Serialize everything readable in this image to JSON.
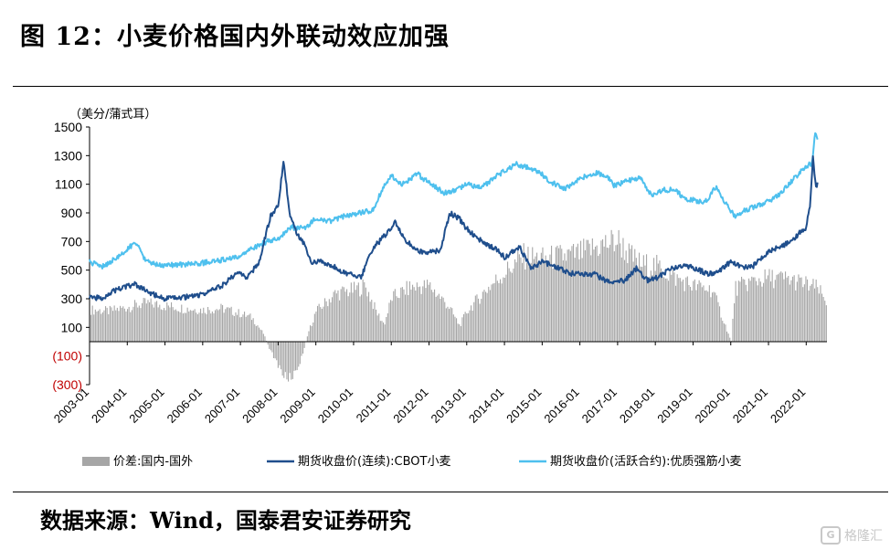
{
  "header": {
    "title": "图 12：小麦价格国内外联动效应加强"
  },
  "footer": {
    "source": "数据来源：Wind，国泰君安证券研究"
  },
  "watermark": {
    "text": "格隆汇",
    "logo": "G"
  },
  "colors": {
    "spread": "#a6a6a6",
    "cbot": "#1f4e8c",
    "domestic": "#4ec0ee",
    "negative_tick": "#c00000"
  },
  "chart_data": {
    "type": "line",
    "unit_label": "（美分/蒲式耳）",
    "ylim": [
      -300,
      1500
    ],
    "y_ticks": [
      {
        "value": 1500,
        "label": "1500",
        "negative": false
      },
      {
        "value": 1300,
        "label": "1300",
        "negative": false
      },
      {
        "value": 1100,
        "label": "1100",
        "negative": false
      },
      {
        "value": 900,
        "label": "900",
        "negative": false
      },
      {
        "value": 700,
        "label": "700",
        "negative": false
      },
      {
        "value": 500,
        "label": "500",
        "negative": false
      },
      {
        "value": 300,
        "label": "300",
        "negative": false
      },
      {
        "value": 100,
        "label": "100",
        "negative": false
      },
      {
        "value": -100,
        "label": "(100)",
        "negative": true
      },
      {
        "value": -300,
        "label": "(300)",
        "negative": true
      }
    ],
    "x_ticks": [
      "2003-01",
      "2004-01",
      "2005-01",
      "2006-01",
      "2007-01",
      "2008-01",
      "2009-01",
      "2010-01",
      "2011-01",
      "2012-01",
      "2013-01",
      "2014-01",
      "2015-01",
      "2016-01",
      "2017-01",
      "2018-01",
      "2019-01",
      "2020-01",
      "2021-01",
      "2022-01"
    ],
    "x_start": 2003.0,
    "x_end": 2022.55,
    "grid": false,
    "legend_position": "bottom",
    "series": [
      {
        "name": "价差:国内-国外",
        "kind": "bar",
        "points": [
          [
            2003.0,
            240
          ],
          [
            2003.5,
            230
          ],
          [
            2004.0,
            260
          ],
          [
            2004.5,
            290
          ],
          [
            2005.0,
            270
          ],
          [
            2005.5,
            250
          ],
          [
            2006.0,
            240
          ],
          [
            2006.5,
            250
          ],
          [
            2007.0,
            210
          ],
          [
            2007.3,
            180
          ],
          [
            2007.6,
            60
          ],
          [
            2007.8,
            -80
          ],
          [
            2008.0,
            -180
          ],
          [
            2008.2,
            -280
          ],
          [
            2008.4,
            -250
          ],
          [
            2008.6,
            -130
          ],
          [
            2008.8,
            80
          ],
          [
            2009.0,
            230
          ],
          [
            2009.5,
            360
          ],
          [
            2010.0,
            390
          ],
          [
            2010.3,
            420
          ],
          [
            2010.6,
            220
          ],
          [
            2010.8,
            130
          ],
          [
            2011.0,
            330
          ],
          [
            2011.5,
            410
          ],
          [
            2012.0,
            420
          ],
          [
            2012.5,
            270
          ],
          [
            2012.8,
            120
          ],
          [
            2013.0,
            230
          ],
          [
            2013.5,
            390
          ],
          [
            2014.0,
            520
          ],
          [
            2014.5,
            640
          ],
          [
            2015.0,
            620
          ],
          [
            2015.5,
            640
          ],
          [
            2016.0,
            660
          ],
          [
            2016.5,
            720
          ],
          [
            2017.0,
            760
          ],
          [
            2017.3,
            650
          ],
          [
            2017.6,
            580
          ],
          [
            2018.0,
            570
          ],
          [
            2018.5,
            480
          ],
          [
            2019.0,
            420
          ],
          [
            2019.5,
            390
          ],
          [
            2020.0,
            0
          ],
          [
            2020.1,
            400
          ],
          [
            2020.5,
            450
          ],
          [
            2021.0,
            480
          ],
          [
            2021.5,
            470
          ],
          [
            2022.0,
            430
          ],
          [
            2022.3,
            400
          ],
          [
            2022.5,
            300
          ]
        ]
      },
      {
        "name": "期货收盘价(连续):CBOT小麦",
        "kind": "line",
        "points": [
          [
            2003.0,
            320
          ],
          [
            2003.3,
            300
          ],
          [
            2003.6,
            350
          ],
          [
            2003.9,
            380
          ],
          [
            2004.2,
            400
          ],
          [
            2004.6,
            340
          ],
          [
            2005.0,
            300
          ],
          [
            2005.5,
            310
          ],
          [
            2006.0,
            330
          ],
          [
            2006.5,
            390
          ],
          [
            2006.9,
            480
          ],
          [
            2007.2,
            450
          ],
          [
            2007.5,
            560
          ],
          [
            2007.8,
            880
          ],
          [
            2008.0,
            950
          ],
          [
            2008.15,
            1270
          ],
          [
            2008.3,
            900
          ],
          [
            2008.5,
            760
          ],
          [
            2008.7,
            680
          ],
          [
            2008.9,
            550
          ],
          [
            2009.1,
            560
          ],
          [
            2009.5,
            520
          ],
          [
            2009.8,
            480
          ],
          [
            2010.2,
            450
          ],
          [
            2010.5,
            650
          ],
          [
            2010.9,
            760
          ],
          [
            2011.1,
            830
          ],
          [
            2011.4,
            700
          ],
          [
            2011.7,
            640
          ],
          [
            2011.9,
            620
          ],
          [
            2012.3,
            640
          ],
          [
            2012.55,
            900
          ],
          [
            2012.8,
            860
          ],
          [
            2013.0,
            790
          ],
          [
            2013.4,
            700
          ],
          [
            2013.8,
            640
          ],
          [
            2014.0,
            590
          ],
          [
            2014.4,
            660
          ],
          [
            2014.7,
            510
          ],
          [
            2015.0,
            560
          ],
          [
            2015.4,
            520
          ],
          [
            2015.7,
            480
          ],
          [
            2016.0,
            470
          ],
          [
            2016.4,
            470
          ],
          [
            2016.8,
            410
          ],
          [
            2017.2,
            430
          ],
          [
            2017.5,
            510
          ],
          [
            2017.8,
            430
          ],
          [
            2018.0,
            440
          ],
          [
            2018.4,
            510
          ],
          [
            2018.7,
            530
          ],
          [
            2019.0,
            520
          ],
          [
            2019.4,
            470
          ],
          [
            2019.7,
            490
          ],
          [
            2020.0,
            560
          ],
          [
            2020.3,
            520
          ],
          [
            2020.6,
            530
          ],
          [
            2020.9,
            610
          ],
          [
            2021.2,
            650
          ],
          [
            2021.6,
            700
          ],
          [
            2021.9,
            780
          ],
          [
            2022.0,
            790
          ],
          [
            2022.1,
            950
          ],
          [
            2022.18,
            1300
          ],
          [
            2022.25,
            1080
          ],
          [
            2022.3,
            1100
          ]
        ]
      },
      {
        "name": "期货收盘价(活跃合约):优质强筋小麦",
        "kind": "line",
        "points": [
          [
            2003.0,
            560
          ],
          [
            2003.3,
            520
          ],
          [
            2003.7,
            580
          ],
          [
            2004.0,
            640
          ],
          [
            2004.2,
            700
          ],
          [
            2004.5,
            560
          ],
          [
            2004.9,
            530
          ],
          [
            2005.5,
            540
          ],
          [
            2006.0,
            550
          ],
          [
            2006.5,
            570
          ],
          [
            2007.0,
            590
          ],
          [
            2007.3,
            650
          ],
          [
            2007.7,
            700
          ],
          [
            2008.0,
            720
          ],
          [
            2008.3,
            800
          ],
          [
            2008.7,
            790
          ],
          [
            2009.0,
            860
          ],
          [
            2009.4,
            840
          ],
          [
            2009.8,
            880
          ],
          [
            2010.2,
            900
          ],
          [
            2010.5,
            920
          ],
          [
            2010.8,
            1080
          ],
          [
            2011.0,
            1160
          ],
          [
            2011.3,
            1100
          ],
          [
            2011.7,
            1170
          ],
          [
            2012.0,
            1110
          ],
          [
            2012.4,
            1040
          ],
          [
            2012.8,
            1070
          ],
          [
            2013.0,
            1100
          ],
          [
            2013.4,
            1080
          ],
          [
            2013.8,
            1160
          ],
          [
            2014.0,
            1190
          ],
          [
            2014.3,
            1240
          ],
          [
            2014.6,
            1220
          ],
          [
            2014.9,
            1190
          ],
          [
            2015.2,
            1120
          ],
          [
            2015.6,
            1070
          ],
          [
            2016.0,
            1140
          ],
          [
            2016.4,
            1180
          ],
          [
            2016.7,
            1160
          ],
          [
            2016.9,
            1090
          ],
          [
            2017.2,
            1120
          ],
          [
            2017.6,
            1150
          ],
          [
            2017.9,
            1020
          ],
          [
            2018.2,
            1060
          ],
          [
            2018.5,
            1060
          ],
          [
            2018.8,
            1000
          ],
          [
            2019.0,
            990
          ],
          [
            2019.3,
            970
          ],
          [
            2019.6,
            1080
          ],
          [
            2019.9,
            950
          ],
          [
            2020.1,
            880
          ],
          [
            2020.4,
            920
          ],
          [
            2020.7,
            950
          ],
          [
            2021.0,
            980
          ],
          [
            2021.3,
            1030
          ],
          [
            2021.6,
            1120
          ],
          [
            2021.9,
            1200
          ],
          [
            2022.0,
            1230
          ],
          [
            2022.15,
            1240
          ],
          [
            2022.25,
            1480
          ],
          [
            2022.3,
            1420
          ]
        ]
      }
    ]
  }
}
